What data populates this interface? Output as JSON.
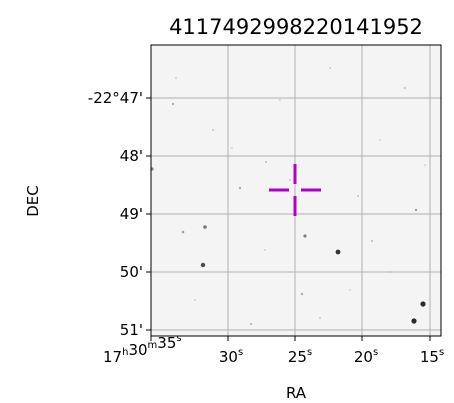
{
  "chart_data": {
    "type": "scatter",
    "title": "411749299822014195​2",
    "xlabel": "RA",
    "ylabel": "DEC",
    "grid": true,
    "x_ticks": [
      {
        "main": "17",
        "sup1": "h",
        "mid": "30",
        "sup2": "m",
        "tail": "35",
        "sup3": "s"
      },
      {
        "main": "30",
        "sup1": "s"
      },
      {
        "main": "25",
        "sup1": "s"
      },
      {
        "main": "20",
        "sup1": "s"
      },
      {
        "main": "15",
        "sup1": "s"
      }
    ],
    "y_ticks": [
      "-22°47'",
      "48'",
      "49'",
      "50'",
      "51'"
    ],
    "marker": {
      "shape": "cross",
      "color": "#b000c8",
      "label": "target"
    },
    "background_color": "#f4f4f4",
    "grid_color": "#b0b0b0",
    "star_color": "#202020"
  }
}
